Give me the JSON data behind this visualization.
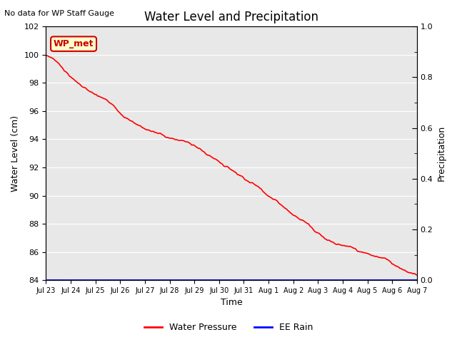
{
  "title": "Water Level and Precipitation",
  "top_left_text": "No data for WP Staff Gauge",
  "xlabel": "Time",
  "ylabel_left": "Water Level (cm)",
  "ylabel_right": "Precipitation",
  "legend_labels": [
    "Water Pressure",
    "EE Rain"
  ],
  "legend_colors": [
    "red",
    "blue"
  ],
  "box_label": "WP_met",
  "box_facecolor": "#ffffcc",
  "box_edgecolor": "#cc0000",
  "ylim_left": [
    84,
    102
  ],
  "ylim_right": [
    0.0,
    1.0
  ],
  "yticks_left": [
    84,
    86,
    88,
    90,
    92,
    94,
    96,
    98,
    100,
    102
  ],
  "yticks_right": [
    0.0,
    0.2,
    0.4,
    0.6,
    0.8,
    1.0
  ],
  "xtick_labels": [
    "Jul 23",
    "Jul 24",
    "Jul 25",
    "Jul 26",
    "Jul 27",
    "Jul 28",
    "Jul 29",
    "Jul 30",
    "Jul 31",
    "Aug 1",
    "Aug 2",
    "Aug 3",
    "Aug 4",
    "Aug 5",
    "Aug 6",
    "Aug 7"
  ],
  "background_color": "#e8e8e8",
  "line_color": "red",
  "rain_color": "blue",
  "line_width": 1.2,
  "grid_color": "white",
  "fig_facecolor": "white"
}
